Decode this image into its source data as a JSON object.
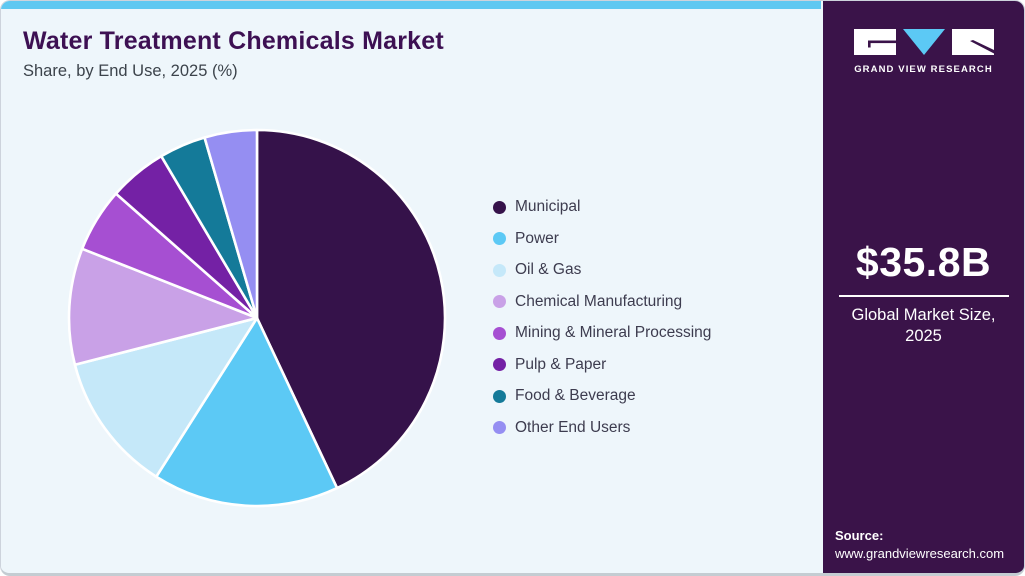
{
  "header": {
    "title": "Water Treatment Chemicals Market",
    "subtitle": "Share, by End Use, 2025 (%)"
  },
  "chart_data": {
    "type": "pie",
    "title": "Water Treatment Chemicals Market Share, by End Use, 2025 (%)",
    "unit": "%",
    "direction": "clockwise",
    "start_angle_deg": 0,
    "legend_position": "right",
    "segments": [
      {
        "label": "Municipal",
        "value": 43,
        "color": "#35124a"
      },
      {
        "label": "Power",
        "value": 16,
        "color": "#5cc9f5"
      },
      {
        "label": "Oil & Gas",
        "value": 12,
        "color": "#c5e8f9"
      },
      {
        "label": "Chemical Manufacturing",
        "value": 10,
        "color": "#c9a1e7"
      },
      {
        "label": "Mining & Mineral Processing",
        "value": 5.5,
        "color": "#a64fd2"
      },
      {
        "label": "Pulp & Paper",
        "value": 5,
        "color": "#7421a5"
      },
      {
        "label": "Food & Beverage",
        "value": 4,
        "color": "#147a99"
      },
      {
        "label": "Other End Users",
        "value": 4.5,
        "color": "#958ef2"
      }
    ]
  },
  "sidebar": {
    "logo": {
      "text": "GRAND VIEW RESEARCH",
      "icon": "gvr-logo"
    },
    "market_size": {
      "value": "$35.8B",
      "label_line1": "Global Market Size,",
      "label_line2": "2025"
    },
    "source": {
      "label": "Source:",
      "url": "www.grandviewresearch.com"
    }
  },
  "colors": {
    "top_accent": "#5fc8f1",
    "sidebar_background": "#3a1349",
    "panel_background": "#eef6fb",
    "title_text": "#3d1053",
    "body_text": "#3d3c4f",
    "logo_triangle": "#5cc9f5"
  }
}
